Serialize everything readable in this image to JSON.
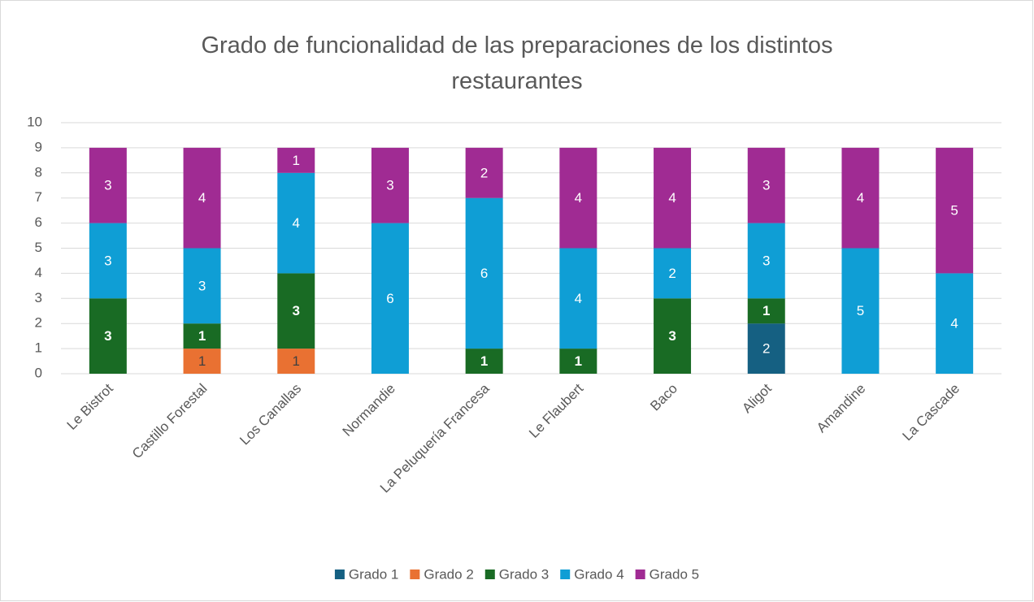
{
  "chart_data": {
    "type": "stacked_bar",
    "title": "Grado de funcionalidad de las preparaciones de los distintos restaurantes",
    "categories": [
      "Le Bistrot",
      "Castillo Forestal",
      "Los Canallas",
      "Normandie",
      "La Peluquería Francesa",
      "Le Flaubert",
      "Baco",
      "Aligot",
      "Amandine",
      "La Cascade"
    ],
    "series": [
      {
        "name": "Grado 1",
        "color": "#156082",
        "values": [
          null,
          null,
          null,
          null,
          null,
          null,
          null,
          2,
          null,
          null
        ]
      },
      {
        "name": "Grado 2",
        "color": "#e97132",
        "values": [
          null,
          1,
          1,
          null,
          null,
          null,
          null,
          null,
          null,
          null
        ]
      },
      {
        "name": "Grado 3",
        "color": "#196b24",
        "values": [
          3,
          1,
          3,
          null,
          1,
          1,
          3,
          1,
          null,
          null
        ]
      },
      {
        "name": "Grado 4",
        "color": "#0f9ed5",
        "values": [
          3,
          3,
          4,
          6,
          6,
          4,
          2,
          3,
          5,
          4
        ]
      },
      {
        "name": "Grado 5",
        "color": "#a02b93",
        "values": [
          3,
          4,
          1,
          3,
          2,
          4,
          4,
          3,
          4,
          5
        ]
      }
    ],
    "ylim": [
      0,
      10
    ],
    "yticks": [
      0,
      1,
      2,
      3,
      4,
      5,
      6,
      7,
      8,
      9,
      10
    ],
    "grid": true,
    "legend": "bottom"
  }
}
